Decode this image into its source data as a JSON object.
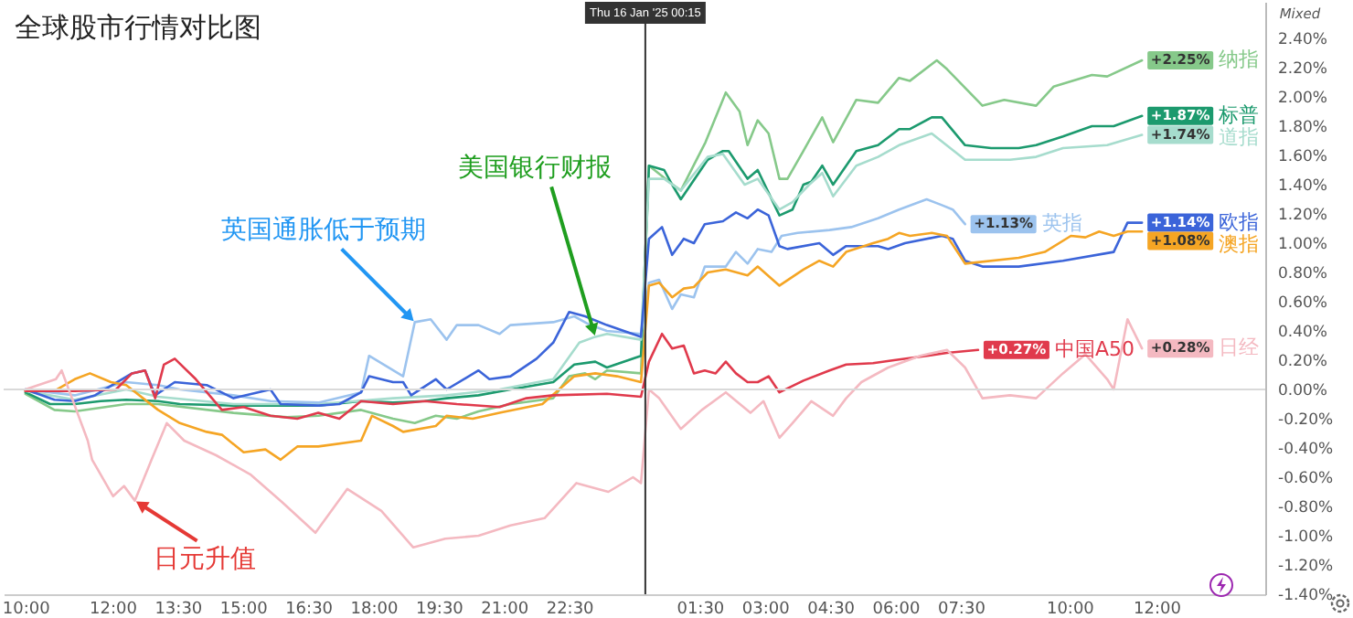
{
  "chart_data": {
    "type": "line",
    "title": "全球股市行情对比图",
    "xlim": [
      "2025-01-15T09:30",
      "2025-01-16T14:30"
    ],
    "xticks": [
      {
        "value": "2025-01-15T10:00",
        "label": "10:00"
      },
      {
        "value": "2025-01-15T12:00",
        "label": "12:00"
      },
      {
        "value": "2025-01-15T13:30",
        "label": "13:30"
      },
      {
        "value": "2025-01-15T15:00",
        "label": "15:00"
      },
      {
        "value": "2025-01-15T16:30",
        "label": "16:30"
      },
      {
        "value": "2025-01-15T18:00",
        "label": "18:00"
      },
      {
        "value": "2025-01-15T19:30",
        "label": "19:30"
      },
      {
        "value": "2025-01-15T21:00",
        "label": "21:00"
      },
      {
        "value": "2025-01-15T22:30",
        "label": "22:30"
      },
      {
        "value": "2025-01-16T01:30",
        "label": "01:30"
      },
      {
        "value": "2025-01-16T03:00",
        "label": "03:00"
      },
      {
        "value": "2025-01-16T04:30",
        "label": "04:30"
      },
      {
        "value": "2025-01-16T06:00",
        "label": "06:00"
      },
      {
        "value": "2025-01-16T07:30",
        "label": "07:30"
      },
      {
        "value": "2025-01-16T10:00",
        "label": "10:00"
      },
      {
        "value": "2025-01-16T12:00",
        "label": "12:00"
      }
    ],
    "ylim": [
      -1.4,
      2.65
    ],
    "yticks": [
      {
        "value": -1.4,
        "label": "-1.40%"
      },
      {
        "value": -1.2,
        "label": "-1.20%"
      },
      {
        "value": -1.0,
        "label": "-1.00%"
      },
      {
        "value": -0.8,
        "label": "-0.80%"
      },
      {
        "value": -0.6,
        "label": "-0.60%"
      },
      {
        "value": -0.4,
        "label": "-0.40%"
      },
      {
        "value": -0.2,
        "label": "-0.20%"
      },
      {
        "value": 0,
        "label": "0.00%"
      },
      {
        "value": 0.2,
        "label": "0.20%"
      },
      {
        "value": 0.4,
        "label": "0.40%"
      },
      {
        "value": 0.6,
        "label": "0.60%"
      },
      {
        "value": 0.8,
        "label": "0.80%"
      },
      {
        "value": 1.0,
        "label": "1.00%"
      },
      {
        "value": 1.2,
        "label": "1.20%"
      },
      {
        "value": 1.4,
        "label": "1.40%"
      },
      {
        "value": 1.6,
        "label": "1.60%"
      },
      {
        "value": 1.8,
        "label": "1.80%"
      },
      {
        "value": 2.0,
        "label": "2.00%"
      },
      {
        "value": 2.2,
        "label": "2.20%"
      },
      {
        "value": 2.4,
        "label": "2.40%"
      }
    ],
    "marker": "none",
    "line_style": "solid",
    "legend": "right",
    "ref_lines": [
      {
        "axis": "y",
        "value": 0,
        "color": "#d9d9d9"
      },
      {
        "axis": "x",
        "value": "2025-01-16T00:15",
        "label": "Thu 16 Jan '25  00:15",
        "color": "#333333"
      }
    ],
    "annotations": [
      {
        "text": "英国通胀低于预期",
        "x": "2025-01-15T18:57",
        "y": 0.46
      },
      {
        "text": "美国银行财报",
        "x": "2025-01-15T23:06",
        "y": 0.36
      },
      {
        "text": "日元升值",
        "x": "2025-01-15T12:31",
        "y": -0.76
      },
      "Mixed"
    ],
    "series": [
      {
        "name": "纳指",
        "color": "#86c98a",
        "x": [
          "2025-01-15T10:00",
          "2025-01-15T10:40",
          "2025-01-15T11:08",
          "2025-01-15T12:19",
          "2025-01-15T13:03",
          "2025-01-15T14:47",
          "2025-01-15T16:01",
          "2025-01-15T16:44",
          "2025-01-15T17:43",
          "2025-01-15T18:27",
          "2025-01-15T18:57",
          "2025-01-15T19:26",
          "2025-01-15T19:55",
          "2025-01-15T20:25",
          "2025-01-15T21:09",
          "2025-01-15T22:08",
          "2025-01-15T22:30",
          "2025-01-15T22:52",
          "2025-01-15T23:06",
          "2025-01-15T23:22",
          "2025-01-16T00:09",
          "2025-01-16T00:20",
          "2025-01-16T00:53",
          "2025-01-16T01:04",
          "2025-01-16T01:38",
          "2025-01-16T02:06",
          "2025-01-16T02:25",
          "2025-01-16T02:36",
          "2025-01-16T02:50",
          "2025-01-16T03:05",
          "2025-01-16T03:20",
          "2025-01-16T03:31",
          "2025-01-16T03:53",
          "2025-01-16T04:19",
          "2025-01-16T04:34",
          "2025-01-16T05:06",
          "2025-01-16T05:36",
          "2025-01-16T06:05",
          "2025-01-16T06:20",
          "2025-01-16T06:57",
          "2025-01-16T07:11",
          "2025-01-16T08:00",
          "2025-01-16T08:30",
          "2025-01-16T09:14",
          "2025-01-16T09:38",
          "2025-01-16T10:31",
          "2025-01-16T10:52",
          "2025-01-16T11:40"
        ],
        "values": [
          -0.03,
          -0.14,
          -0.15,
          -0.1,
          -0.1,
          -0.16,
          -0.19,
          -0.18,
          -0.14,
          -0.2,
          -0.23,
          -0.18,
          -0.2,
          -0.15,
          -0.1,
          -0.06,
          0.09,
          0.11,
          0.07,
          0.13,
          0.11,
          1.53,
          1.4,
          1.36,
          1.69,
          2.03,
          1.9,
          1.67,
          1.84,
          1.75,
          1.44,
          1.44,
          1.63,
          1.86,
          1.69,
          1.98,
          1.96,
          2.13,
          2.11,
          2.25,
          2.19,
          1.94,
          1.98,
          1.94,
          2.07,
          2.15,
          2.14,
          2.25
        ],
        "value_labels": [
          null,
          null,
          null,
          null,
          null,
          null,
          null,
          null,
          null,
          null,
          null,
          null,
          null,
          null,
          null,
          null,
          null,
          null,
          null,
          null,
          null,
          null,
          null,
          null,
          null,
          null,
          null,
          null,
          null,
          null,
          null,
          null,
          null,
          null,
          null,
          null,
          null,
          null,
          null,
          null,
          null,
          null,
          null,
          null,
          null,
          null,
          null,
          "+2.25%"
        ]
      },
      {
        "name": "标普",
        "color": "#1c9a6e",
        "x": [
          "2025-01-15T10:00",
          "2025-01-15T10:34",
          "2025-01-15T11:08",
          "2025-01-15T11:44",
          "2025-01-15T12:19",
          "2025-01-15T13:03",
          "2025-01-15T13:33",
          "2025-01-15T14:47",
          "2025-01-15T16:01",
          "2025-01-15T16:44",
          "2025-01-15T17:43",
          "2025-01-15T18:27",
          "2025-01-15T19:11",
          "2025-01-15T19:41",
          "2025-01-15T20:25",
          "2025-01-15T21:09",
          "2025-01-15T22:08",
          "2025-01-15T22:37",
          "2025-01-15T23:06",
          "2025-01-15T23:22",
          "2025-01-16T00:09",
          "2025-01-16T00:20",
          "2025-01-16T00:41",
          "2025-01-16T00:52",
          "2025-01-16T01:04",
          "2025-01-16T01:41",
          "2025-01-16T02:02",
          "2025-01-16T02:10",
          "2025-01-16T02:36",
          "2025-01-16T02:50",
          "2025-01-16T03:20",
          "2025-01-16T03:38",
          "2025-01-16T03:53",
          "2025-01-16T04:04",
          "2025-01-16T04:19",
          "2025-01-16T04:34",
          "2025-01-16T05:06",
          "2025-01-16T05:36",
          "2025-01-16T06:05",
          "2025-01-16T06:20",
          "2025-01-16T06:50",
          "2025-01-16T07:04",
          "2025-01-16T07:36",
          "2025-01-16T08:12",
          "2025-01-16T08:50",
          "2025-01-16T09:14",
          "2025-01-16T09:51",
          "2025-01-16T10:31",
          "2025-01-16T11:01",
          "2025-01-16T11:40"
        ],
        "values": [
          -0.02,
          -0.1,
          -0.1,
          -0.08,
          -0.07,
          -0.08,
          -0.1,
          -0.11,
          -0.11,
          -0.11,
          -0.08,
          -0.09,
          -0.08,
          -0.06,
          -0.04,
          0.0,
          0.05,
          0.17,
          0.19,
          0.15,
          0.23,
          1.53,
          1.5,
          1.4,
          1.3,
          1.57,
          1.63,
          1.63,
          1.44,
          1.5,
          1.19,
          1.23,
          1.4,
          1.42,
          1.53,
          1.4,
          1.63,
          1.67,
          1.78,
          1.78,
          1.86,
          1.86,
          1.67,
          1.65,
          1.65,
          1.67,
          1.73,
          1.8,
          1.8,
          1.87
        ],
        "value_labels": [
          null,
          null,
          null,
          null,
          null,
          null,
          null,
          null,
          null,
          null,
          null,
          null,
          null,
          null,
          null,
          null,
          null,
          null,
          null,
          null,
          null,
          null,
          null,
          null,
          null,
          null,
          null,
          null,
          null,
          null,
          null,
          null,
          null,
          null,
          null,
          null,
          null,
          null,
          null,
          null,
          null,
          null,
          null,
          null,
          null,
          null,
          null,
          null,
          null,
          "+1.87%"
        ]
      },
      {
        "name": "道指",
        "color": "#a6dccd",
        "x": [
          "2025-01-15T10:00",
          "2025-01-15T11:08",
          "2025-01-15T12:19",
          "2025-01-15T13:03",
          "2025-01-15T14:47",
          "2025-01-15T16:44",
          "2025-01-15T18:27",
          "2025-01-15T19:41",
          "2025-01-15T20:54",
          "2025-01-15T22:08",
          "2025-01-15T22:44",
          "2025-01-15T23:06",
          "2025-01-15T23:22",
          "2025-01-16T00:09",
          "2025-01-16T00:20",
          "2025-01-16T00:41",
          "2025-01-16T01:04",
          "2025-01-16T01:41",
          "2025-01-16T02:02",
          "2025-01-16T02:32",
          "2025-01-16T02:50",
          "2025-01-16T03:20",
          "2025-01-16T03:38",
          "2025-01-16T04:01",
          "2025-01-16T04:19",
          "2025-01-16T04:34",
          "2025-01-16T05:06",
          "2025-01-16T05:36",
          "2025-01-16T06:05",
          "2025-01-16T06:50",
          "2025-01-16T07:36",
          "2025-01-16T08:38",
          "2025-01-16T09:14",
          "2025-01-16T09:51",
          "2025-01-16T10:52",
          "2025-01-16T11:40"
        ],
        "values": [
          -0.01,
          -0.07,
          0.0,
          -0.05,
          -0.1,
          -0.1,
          -0.06,
          -0.04,
          0.0,
          0.07,
          0.32,
          0.36,
          0.38,
          0.34,
          1.44,
          1.44,
          1.36,
          1.59,
          1.61,
          1.4,
          1.44,
          1.23,
          1.28,
          1.4,
          1.48,
          1.32,
          1.53,
          1.59,
          1.67,
          1.75,
          1.57,
          1.57,
          1.59,
          1.65,
          1.67,
          1.74
        ],
        "value_labels": [
          null,
          null,
          null,
          null,
          null,
          null,
          null,
          null,
          null,
          null,
          null,
          null,
          null,
          null,
          null,
          null,
          null,
          null,
          null,
          null,
          null,
          null,
          null,
          null,
          null,
          null,
          null,
          null,
          null,
          null,
          null,
          null,
          null,
          null,
          null,
          "+1.74%"
        ]
      },
      {
        "name": "英指",
        "color": "#9cc3ee",
        "x": [
          "2025-01-15T10:00",
          "2025-01-15T11:08",
          "2025-01-15T12:19",
          "2025-01-15T13:03",
          "2025-01-15T13:33",
          "2025-01-15T14:47",
          "2025-01-15T15:38",
          "2025-01-15T16:44",
          "2025-01-15T17:43",
          "2025-01-15T17:54",
          "2025-01-15T18:41",
          "2025-01-15T18:57",
          "2025-01-15T19:19",
          "2025-01-15T19:41",
          "2025-01-15T19:55",
          "2025-01-15T20:25",
          "2025-01-15T20:54",
          "2025-01-15T21:09",
          "2025-01-15T22:08",
          "2025-01-15T22:37",
          "2025-01-15T22:59",
          "2025-01-15T23:22",
          "2025-01-16T00:09",
          "2025-01-16T00:20",
          "2025-01-16T00:34",
          "2025-01-16T00:52",
          "2025-01-16T01:04",
          "2025-01-16T01:22",
          "2025-01-16T01:37",
          "2025-01-16T02:06",
          "2025-01-16T02:20",
          "2025-01-16T02:36",
          "2025-01-16T02:50",
          "2025-01-16T03:09",
          "2025-01-16T03:23",
          "2025-01-16T03:45",
          "2025-01-16T04:29",
          "2025-01-16T04:59",
          "2025-01-16T05:36",
          "2025-01-16T06:05",
          "2025-01-16T06:43",
          "2025-01-16T07:04",
          "2025-01-16T07:19",
          "2025-01-16T07:36"
        ],
        "values": [
          0,
          -0.04,
          0.05,
          0.03,
          0.0,
          -0.04,
          -0.08,
          -0.09,
          -0.02,
          0.23,
          0.09,
          0.46,
          0.48,
          0.34,
          0.44,
          0.44,
          0.38,
          0.44,
          0.46,
          0.5,
          0.44,
          0.4,
          0.38,
          0.73,
          0.75,
          0.55,
          0.65,
          0.63,
          0.84,
          0.84,
          0.94,
          0.86,
          0.96,
          0.94,
          1.05,
          1.07,
          1.09,
          1.11,
          1.17,
          1.23,
          1.3,
          1.26,
          1.23,
          1.13
        ],
        "value_labels": [
          null,
          null,
          null,
          null,
          null,
          null,
          null,
          null,
          null,
          null,
          null,
          null,
          null,
          null,
          null,
          null,
          null,
          null,
          null,
          null,
          null,
          null,
          null,
          null,
          null,
          null,
          null,
          null,
          null,
          null,
          null,
          null,
          null,
          null,
          null,
          null,
          null,
          null,
          null,
          null,
          null,
          null,
          null,
          "+1.13%"
        ]
      },
      {
        "name": "欧指",
        "color": "#3b64d9",
        "x": [
          "2025-01-15T10:00",
          "2025-01-15T10:40",
          "2025-01-15T11:08",
          "2025-01-15T11:36",
          "2025-01-15T12:27",
          "2025-01-15T12:45",
          "2025-01-15T12:59",
          "2025-01-15T13:26",
          "2025-01-15T14:10",
          "2025-01-15T14:47",
          "2025-01-15T15:38",
          "2025-01-15T15:52",
          "2025-01-15T16:44",
          "2025-01-15T17:13",
          "2025-01-15T17:43",
          "2025-01-15T17:54",
          "2025-01-15T18:27",
          "2025-01-15T18:41",
          "2025-01-15T18:52",
          "2025-01-15T19:26",
          "2025-01-15T19:41",
          "2025-01-15T20:25",
          "2025-01-15T20:40",
          "2025-01-15T21:09",
          "2025-01-15T21:45",
          "2025-01-15T22:08",
          "2025-01-15T22:30",
          "2025-01-15T22:52",
          "2025-01-15T23:22",
          "2025-01-16T00:09",
          "2025-01-16T00:20",
          "2025-01-16T00:38",
          "2025-01-16T00:52",
          "2025-01-16T01:08",
          "2025-01-16T01:22",
          "2025-01-16T01:37",
          "2025-01-16T02:02",
          "2025-01-16T02:20",
          "2025-01-16T02:36",
          "2025-01-16T02:50",
          "2025-01-16T03:05",
          "2025-01-16T03:20",
          "2025-01-16T03:31",
          "2025-01-16T04:15",
          "2025-01-16T04:34",
          "2025-01-16T04:52",
          "2025-01-16T05:36",
          "2025-01-16T05:50",
          "2025-01-16T06:13",
          "2025-01-16T07:04",
          "2025-01-16T07:19",
          "2025-01-16T07:36",
          "2025-01-16T08:00",
          "2025-01-16T08:50",
          "2025-01-16T09:51",
          "2025-01-16T11:01",
          "2025-01-16T11:20",
          "2025-01-16T11:40"
        ],
        "values": [
          0,
          -0.07,
          -0.08,
          -0.04,
          0.11,
          0.13,
          -0.04,
          0.05,
          0.03,
          -0.06,
          0.0,
          -0.1,
          -0.11,
          -0.1,
          -0.02,
          0.09,
          0.05,
          0.05,
          -0.04,
          0.07,
          0.0,
          0.13,
          0.07,
          0.09,
          0.21,
          0.32,
          0.53,
          0.5,
          0.44,
          0.36,
          1.03,
          1.11,
          0.92,
          1.03,
          1.0,
          1.13,
          1.15,
          1.21,
          1.17,
          1.23,
          1.19,
          0.98,
          0.96,
          1.0,
          0.92,
          0.98,
          0.98,
          0.96,
          1.0,
          1.05,
          1.03,
          0.88,
          0.84,
          0.84,
          0.88,
          0.94,
          1.14,
          1.14
        ],
        "value_labels": [
          null,
          null,
          null,
          null,
          null,
          null,
          null,
          null,
          null,
          null,
          null,
          null,
          null,
          null,
          null,
          null,
          null,
          null,
          null,
          null,
          null,
          null,
          null,
          null,
          null,
          null,
          null,
          null,
          null,
          null,
          null,
          null,
          null,
          null,
          null,
          null,
          null,
          null,
          null,
          null,
          null,
          null,
          null,
          null,
          null,
          null,
          null,
          null,
          null,
          null,
          null,
          null,
          null,
          null,
          null,
          null,
          null,
          "+1.14%"
        ]
      },
      {
        "name": "澳指",
        "color": "#f5a524",
        "x": [
          "2025-01-15T10:00",
          "2025-01-15T10:40",
          "2025-01-15T11:08",
          "2025-01-15T11:29",
          "2025-01-15T11:58",
          "2025-01-15T12:19",
          "2025-01-15T13:03",
          "2025-01-15T13:33",
          "2025-01-15T14:10",
          "2025-01-15T14:31",
          "2025-01-15T15:01",
          "2025-01-15T15:31",
          "2025-01-15T15:52",
          "2025-01-15T16:15",
          "2025-01-15T16:44",
          "2025-01-15T17:43",
          "2025-01-15T17:58",
          "2025-01-15T18:27",
          "2025-01-15T18:41",
          "2025-01-15T19:26",
          "2025-01-15T19:41",
          "2025-01-15T20:17",
          "2025-01-15T20:54",
          "2025-01-15T21:53",
          "2025-01-15T22:37",
          "2025-01-15T23:06",
          "2025-01-15T23:36",
          "2025-01-16T00:09",
          "2025-01-16T00:20",
          "2025-01-16T00:34",
          "2025-01-16T00:52",
          "2025-01-16T01:08",
          "2025-01-16T01:22",
          "2025-01-16T01:41",
          "2025-01-16T02:06",
          "2025-01-16T02:36",
          "2025-01-16T02:50",
          "2025-01-16T03:20",
          "2025-01-16T03:53",
          "2025-01-16T04:15",
          "2025-01-16T04:34",
          "2025-01-16T04:52",
          "2025-01-16T05:29",
          "2025-01-16T05:50",
          "2025-01-16T06:05",
          "2025-01-16T06:20",
          "2025-01-16T06:50",
          "2025-01-16T07:11",
          "2025-01-16T07:36",
          "2025-01-16T08:50",
          "2025-01-16T09:26",
          "2025-01-16T10:02",
          "2025-01-16T10:22",
          "2025-01-16T10:41",
          "2025-01-16T11:01",
          "2025-01-16T11:20",
          "2025-01-16T11:40"
        ],
        "values": [
          -0.01,
          -0.01,
          0.07,
          0.11,
          0.05,
          0.03,
          -0.14,
          -0.23,
          -0.29,
          -0.31,
          -0.43,
          -0.41,
          -0.48,
          -0.39,
          -0.39,
          -0.35,
          -0.18,
          -0.25,
          -0.29,
          -0.25,
          -0.18,
          -0.2,
          -0.16,
          -0.1,
          0.09,
          0.11,
          0.09,
          0.05,
          0.71,
          0.73,
          0.63,
          0.69,
          0.7,
          0.8,
          0.82,
          0.78,
          0.84,
          0.71,
          0.82,
          0.88,
          0.84,
          0.94,
          1.0,
          1.03,
          1.07,
          1.05,
          1.07,
          1.05,
          0.86,
          0.9,
          0.94,
          1.05,
          1.04,
          1.08,
          1.05,
          1.08,
          1.08
        ],
        "value_labels": [
          null,
          null,
          null,
          null,
          null,
          null,
          null,
          null,
          null,
          null,
          null,
          null,
          null,
          null,
          null,
          null,
          null,
          null,
          null,
          null,
          null,
          null,
          null,
          null,
          null,
          null,
          null,
          null,
          null,
          null,
          null,
          null,
          null,
          null,
          null,
          null,
          null,
          null,
          null,
          null,
          null,
          null,
          null,
          null,
          null,
          null,
          null,
          null,
          null,
          null,
          null,
          null,
          null,
          null,
          null,
          null,
          "+1.08%"
        ]
      },
      {
        "name": "中国A50",
        "color": "#e03a4c",
        "x": [
          "2025-01-15T10:00",
          "2025-01-15T11:08",
          "2025-01-15T12:05",
          "2025-01-15T12:27",
          "2025-01-15T12:45",
          "2025-01-15T12:59",
          "2025-01-15T13:11",
          "2025-01-15T13:26",
          "2025-01-15T13:55",
          "2025-01-15T14:31",
          "2025-01-15T15:01",
          "2025-01-15T15:38",
          "2025-01-15T16:15",
          "2025-01-15T16:44",
          "2025-01-15T17:13",
          "2025-01-15T17:43",
          "2025-01-15T18:27",
          "2025-01-15T19:11",
          "2025-01-15T19:55",
          "2025-01-15T20:54",
          "2025-01-15T21:31",
          "2025-01-15T22:08",
          "2025-01-15T23:22",
          "2025-01-16T00:09",
          "2025-01-16T00:20",
          "2025-01-16T00:38",
          "2025-01-16T00:52",
          "2025-01-16T01:08",
          "2025-01-16T01:22",
          "2025-01-16T01:37",
          "2025-01-16T01:52",
          "2025-01-16T02:06",
          "2025-01-16T02:20",
          "2025-01-16T02:36",
          "2025-01-16T02:50",
          "2025-01-16T03:05",
          "2025-01-16T03:20",
          "2025-01-16T03:53",
          "2025-01-16T04:29",
          "2025-01-16T04:52",
          "2025-01-16T05:29",
          "2025-01-16T05:58",
          "2025-01-16T06:43",
          "2025-01-16T07:11",
          "2025-01-16T07:54"
        ],
        "values": [
          -0.01,
          -0.01,
          0.0,
          0.11,
          0.13,
          -0.06,
          0.17,
          0.21,
          0.07,
          -0.14,
          -0.12,
          -0.18,
          -0.2,
          -0.16,
          -0.2,
          -0.08,
          -0.1,
          -0.08,
          -0.1,
          -0.12,
          -0.06,
          -0.04,
          -0.03,
          -0.05,
          0.19,
          0.38,
          0.28,
          0.3,
          0.11,
          0.13,
          0.11,
          0.19,
          0.11,
          0.05,
          0.05,
          0.09,
          -0.02,
          0.06,
          0.13,
          0.17,
          0.18,
          0.2,
          0.23,
          0.25,
          0.27
        ],
        "value_labels": [
          null,
          null,
          null,
          null,
          null,
          null,
          null,
          null,
          null,
          null,
          null,
          null,
          null,
          null,
          null,
          null,
          null,
          null,
          null,
          null,
          null,
          null,
          null,
          null,
          null,
          null,
          null,
          null,
          null,
          null,
          null,
          null,
          null,
          null,
          null,
          null,
          null,
          null,
          null,
          null,
          null,
          null,
          null,
          null,
          "+0.27%"
        ]
      },
      {
        "name": "日经",
        "color": "#f4b9c1",
        "x": [
          "2025-01-15T10:00",
          "2025-01-15T10:42",
          "2025-01-15T10:50",
          "2025-01-15T11:26",
          "2025-01-15T11:32",
          "2025-01-15T12:01",
          "2025-01-15T12:16",
          "2025-01-15T12:31",
          "2025-01-15T12:54",
          "2025-01-15T13:15",
          "2025-01-15T13:39",
          "2025-01-15T14:23",
          "2025-01-15T15:10",
          "2025-01-15T15:54",
          "2025-01-15T16:40",
          "2025-01-15T17:24",
          "2025-01-15T18:11",
          "2025-01-15T18:55",
          "2025-01-15T19:39",
          "2025-01-15T20:25",
          "2025-01-15T21:09",
          "2025-01-15T21:56",
          "2025-01-15T22:40",
          "2025-01-15T23:24",
          "2025-01-15T23:58",
          "2025-01-16T00:09",
          "2025-01-16T00:20",
          "2025-01-16T00:34",
          "2025-01-16T01:04",
          "2025-01-16T01:33",
          "2025-01-16T02:06",
          "2025-01-16T02:40",
          "2025-01-16T02:58",
          "2025-01-16T03:20",
          "2025-01-16T03:38",
          "2025-01-16T04:04",
          "2025-01-16T04:34",
          "2025-01-16T04:52",
          "2025-01-16T05:13",
          "2025-01-16T05:50",
          "2025-01-16T06:34",
          "2025-01-16T07:11",
          "2025-01-16T07:36",
          "2025-01-16T08:00",
          "2025-01-16T08:38",
          "2025-01-16T09:14",
          "2025-01-16T09:51",
          "2025-01-16T10:22",
          "2025-01-16T10:52",
          "2025-01-16T11:01",
          "2025-01-16T11:20",
          "2025-01-16T11:40"
        ],
        "values": [
          0,
          0.07,
          0.13,
          -0.35,
          -0.48,
          -0.73,
          -0.66,
          -0.76,
          -0.48,
          -0.23,
          -0.35,
          -0.45,
          -0.58,
          -0.77,
          -0.98,
          -0.68,
          -0.83,
          -1.08,
          -1.02,
          -1.0,
          -0.93,
          -0.88,
          -0.64,
          -0.7,
          -0.6,
          -0.64,
          0.0,
          -0.06,
          -0.27,
          -0.14,
          -0.02,
          -0.16,
          -0.08,
          -0.33,
          -0.23,
          -0.08,
          -0.18,
          -0.06,
          0.05,
          0.15,
          0.23,
          0.27,
          0.15,
          -0.06,
          -0.04,
          -0.06,
          0.11,
          0.24,
          0.07,
          0.0,
          0.48,
          0.28
        ],
        "value_labels": [
          null,
          null,
          null,
          null,
          null,
          null,
          null,
          null,
          null,
          null,
          null,
          null,
          null,
          null,
          null,
          null,
          null,
          null,
          null,
          null,
          null,
          null,
          null,
          null,
          null,
          null,
          null,
          null,
          null,
          null,
          null,
          null,
          null,
          null,
          null,
          null,
          null,
          null,
          null,
          null,
          null,
          null,
          null,
          null,
          null,
          null,
          null,
          null,
          null,
          null,
          null,
          "+0.28%"
        ]
      }
    ]
  }
}
